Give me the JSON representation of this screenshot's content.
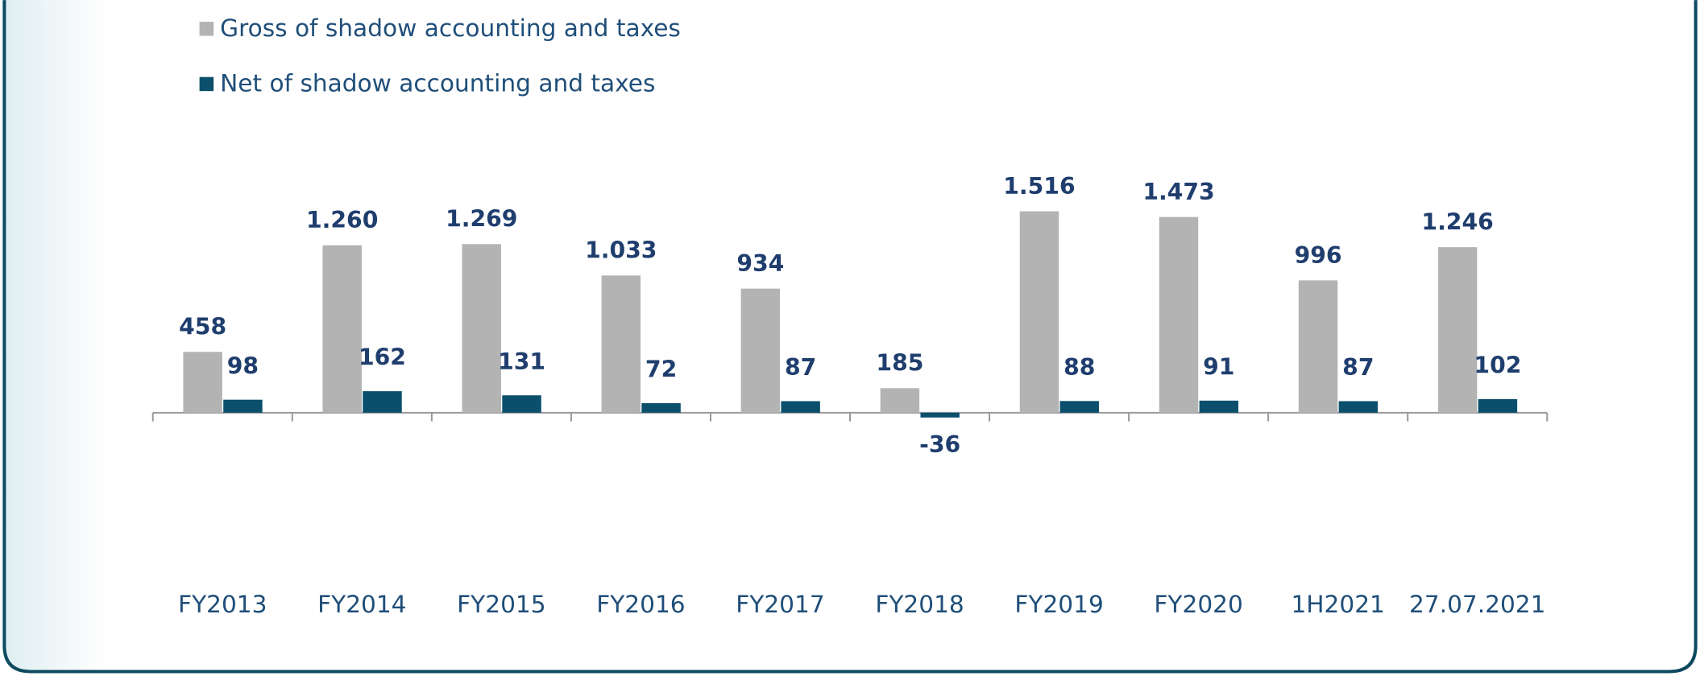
{
  "chart_data": {
    "type": "bar",
    "categories": [
      "FY2013",
      "FY2014",
      "FY2015",
      "FY2016",
      "FY2017",
      "FY2018",
      "FY2019",
      "FY2020",
      "1H2021",
      "27.07.2021"
    ],
    "series": [
      {
        "name": "Gross of shadow accounting and taxes",
        "color": "#b3b3b3",
        "values": [
          458,
          1260,
          1269,
          1033,
          934,
          185,
          1516,
          1473,
          996,
          1246
        ],
        "value_labels": [
          "458",
          "1.260",
          "1.269",
          "1.033",
          "934",
          "185",
          "1.516",
          "1.473",
          "996",
          "1.246"
        ]
      },
      {
        "name": "Net of shadow accounting and taxes",
        "color": "#0b4f6c",
        "values": [
          98,
          162,
          131,
          72,
          87,
          -36,
          88,
          91,
          87,
          102
        ]
      }
    ]
  }
}
